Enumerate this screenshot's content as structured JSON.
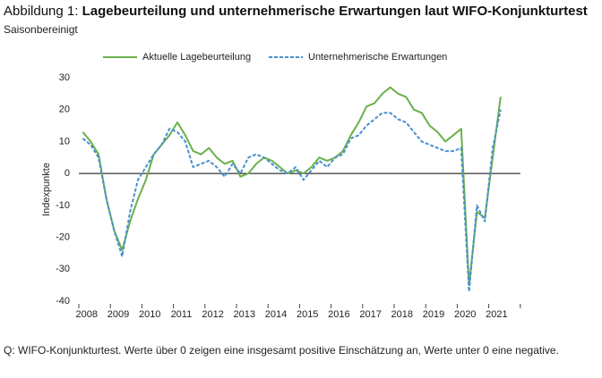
{
  "chart_data": {
    "type": "line",
    "figure_label": "Abbildung 1:",
    "title": "Lagebeurteilung und unternehmerische Erwartungen laut WIFO-Konjunkturtest",
    "subtitle": "Saisonbereinigt",
    "y_label": "Indexpunkte",
    "note": "Q: WIFO-Konjunkturtest. Werte über 0 zeigen eine insgesamt positive Einschätzung an, Werte unter 0 eine negative.",
    "categories": [
      null,
      "2008",
      null,
      null,
      null,
      "2009",
      null,
      null,
      null,
      "2010",
      null,
      null,
      null,
      "2011",
      null,
      null,
      null,
      "2012",
      null,
      null,
      null,
      "2013",
      null,
      null,
      null,
      "2014",
      null,
      null,
      null,
      "2015",
      null,
      null,
      null,
      "2016",
      null,
      null,
      null,
      "2017",
      null,
      null,
      null,
      "2018",
      null,
      null,
      null,
      "2019",
      null,
      null,
      null,
      "2020",
      null,
      null,
      null,
      "2021"
    ],
    "series": [
      {
        "name": "Aktuelle Lagebeurteilung",
        "color": "#6ab04c",
        "dashed": false,
        "values": [
          13,
          10,
          6,
          -8,
          -18,
          -24,
          -15,
          -8,
          -2,
          6,
          9,
          12,
          16,
          12,
          7,
          6,
          8,
          5,
          3,
          4,
          -1,
          0,
          3,
          5,
          4,
          2,
          0,
          1,
          0,
          2,
          5,
          4,
          5,
          7,
          12,
          16,
          21,
          22,
          25,
          27,
          25,
          24,
          20,
          19,
          15,
          13,
          10,
          12,
          14,
          -35,
          -12,
          -14,
          5,
          24
        ]
      },
      {
        "name": "Unternehmerische Erwartungen",
        "color": "#4a90d0",
        "dashed": true,
        "values": [
          11,
          9,
          5,
          -8,
          -18,
          -26,
          -12,
          -2,
          2,
          6,
          9,
          14,
          13,
          10,
          2,
          3,
          4,
          2,
          -1,
          3,
          0,
          5,
          6,
          5,
          3,
          1,
          0,
          2,
          -2,
          1,
          4,
          2,
          5,
          6,
          11,
          12,
          15,
          17,
          19,
          19,
          17,
          16,
          13,
          10,
          9,
          8,
          7,
          7,
          8,
          -37,
          -10,
          -15,
          8,
          20
        ]
      }
    ],
    "ylim": [
      -40,
      30
    ],
    "yticks": [
      -40,
      -30,
      -20,
      -10,
      0,
      10,
      20,
      30
    ],
    "grid": false,
    "legend": "top"
  }
}
